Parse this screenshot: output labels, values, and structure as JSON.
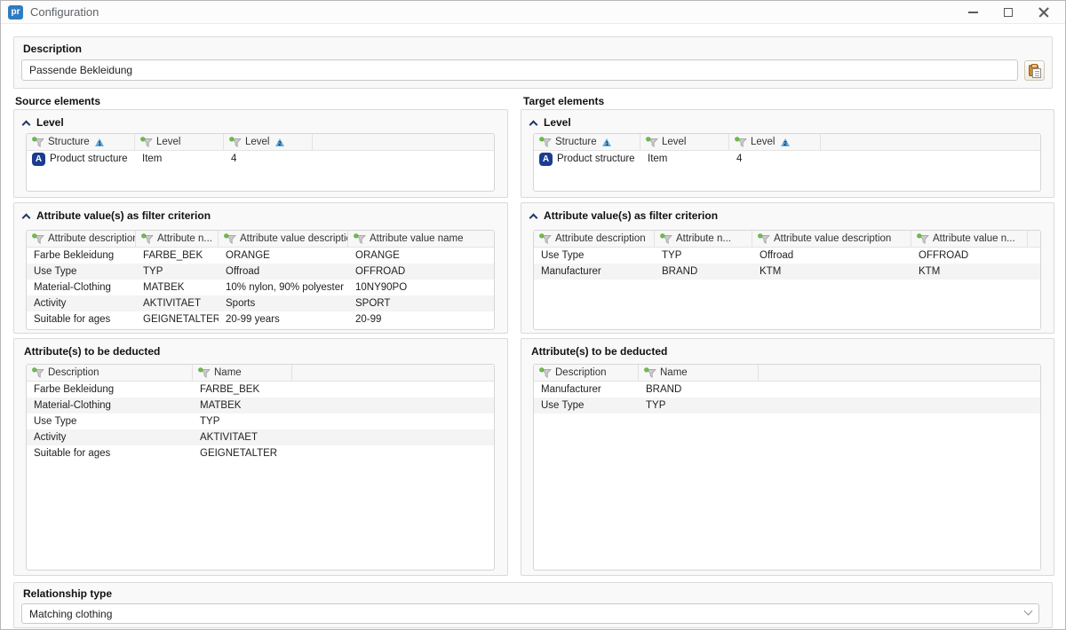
{
  "window": {
    "title": "Configuration",
    "app_badge": "pr"
  },
  "icons": {
    "structure_badge": "A"
  },
  "colors": {
    "app_badge_bg": "#2f7cc0",
    "structure_badge_bg": "#1b3c8f",
    "sort_badge": "#66aede",
    "funnel_dot": "#6cbf4a",
    "caret": "#1f3864",
    "paste_clipboard": "#cd8a33"
  },
  "description": {
    "label": "Description",
    "value": "Passende Bekleidung"
  },
  "source": {
    "label": "Source elements",
    "level": {
      "header": "Level",
      "columns": [
        {
          "label": "Structure",
          "sort": "1"
        },
        {
          "label": "Level",
          "sort": ""
        },
        {
          "label": "Level",
          "sort": "2"
        }
      ],
      "rows": [
        [
          "Product structure",
          "Item",
          "4"
        ]
      ]
    },
    "filter": {
      "header": "Attribute value(s) as filter criterion",
      "columns": [
        {
          "label": "Attribute description"
        },
        {
          "label": "Attribute n..."
        },
        {
          "label": "Attribute value description"
        },
        {
          "label": "Attribute value name"
        }
      ],
      "rows": [
        [
          "Farbe Bekleidung",
          "FARBE_BEK",
          "ORANGE",
          "ORANGE"
        ],
        [
          "Use Type",
          "TYP",
          "Offroad",
          "OFFROAD"
        ],
        [
          "Material-Clothing",
          "MATBEK",
          "10% nylon, 90% polyester",
          "10NY90PO"
        ],
        [
          "Activity",
          "AKTIVITAET",
          "Sports",
          "SPORT"
        ],
        [
          "Suitable for ages",
          "GEIGNETALTER",
          "20-99 years",
          "20-99"
        ]
      ]
    },
    "deducted": {
      "header": "Attribute(s) to be deducted",
      "columns": [
        {
          "label": "Description"
        },
        {
          "label": "Name"
        }
      ],
      "rows": [
        [
          "Farbe Bekleidung",
          "FARBE_BEK"
        ],
        [
          "Material-Clothing",
          "MATBEK"
        ],
        [
          "Use Type",
          "TYP"
        ],
        [
          "Activity",
          "AKTIVITAET"
        ],
        [
          "Suitable for ages",
          "GEIGNETALTER"
        ]
      ]
    }
  },
  "target": {
    "label": "Target elements",
    "level": {
      "header": "Level",
      "columns": [
        {
          "label": "Structure",
          "sort": "1"
        },
        {
          "label": "Level",
          "sort": ""
        },
        {
          "label": "Level",
          "sort": "2"
        }
      ],
      "rows": [
        [
          "Product structure",
          "Item",
          "4"
        ]
      ]
    },
    "filter": {
      "header": "Attribute value(s) as filter criterion",
      "columns": [
        {
          "label": "Attribute description"
        },
        {
          "label": "Attribute n..."
        },
        {
          "label": "Attribute value description"
        },
        {
          "label": "Attribute value n..."
        }
      ],
      "rows": [
        [
          "Use Type",
          "TYP",
          "Offroad",
          "OFFROAD"
        ],
        [
          "Manufacturer",
          "BRAND",
          "KTM",
          "KTM"
        ]
      ]
    },
    "deducted": {
      "header": "Attribute(s) to be deducted",
      "columns": [
        {
          "label": "Description"
        },
        {
          "label": "Name"
        }
      ],
      "rows": [
        [
          "Manufacturer",
          "BRAND"
        ],
        [
          "Use Type",
          "TYP"
        ]
      ]
    }
  },
  "relationship": {
    "label": "Relationship type",
    "value": "Matching clothing"
  }
}
